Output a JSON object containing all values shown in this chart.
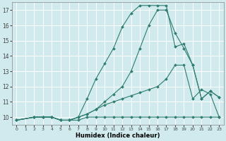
{
  "xlabel": "Humidex (Indice chaleur)",
  "bg_color": "#d0eaed",
  "grid_color": "#ffffff",
  "line_color": "#2e7d6e",
  "xlim": [
    -0.5,
    23.5
  ],
  "ylim": [
    9.5,
    17.5
  ],
  "yticks": [
    10,
    11,
    12,
    13,
    14,
    15,
    16,
    17
  ],
  "xticks": [
    0,
    1,
    2,
    3,
    4,
    5,
    6,
    7,
    8,
    9,
    10,
    11,
    12,
    13,
    14,
    15,
    16,
    17,
    18,
    19,
    20,
    21,
    22,
    23
  ],
  "line1_x": [
    0,
    2,
    3,
    4,
    5,
    6,
    7,
    8,
    9,
    10,
    11,
    12,
    13,
    14,
    15,
    16,
    17,
    18,
    19,
    20,
    21,
    22,
    23
  ],
  "line1_y": [
    9.8,
    10.0,
    10.0,
    10.0,
    9.8,
    9.8,
    9.8,
    10.0,
    10.0,
    10.0,
    10.0,
    10.0,
    10.0,
    10.0,
    10.0,
    10.0,
    10.0,
    10.0,
    10.0,
    10.0,
    10.0,
    10.0,
    10.0
  ],
  "line2_x": [
    0,
    2,
    3,
    4,
    5,
    6,
    7,
    8,
    9,
    10,
    11,
    12,
    13,
    14,
    15,
    16,
    17,
    18,
    19,
    20,
    21,
    22,
    23
  ],
  "line2_y": [
    9.8,
    10.0,
    10.0,
    10.0,
    9.8,
    9.8,
    10.0,
    10.2,
    10.5,
    11.0,
    11.5,
    12.0,
    13.0,
    14.5,
    16.0,
    17.0,
    17.0,
    15.5,
    14.5,
    13.4,
    11.2,
    11.7,
    11.3
  ],
  "line3_x": [
    0,
    2,
    3,
    4,
    5,
    6,
    7,
    8,
    9,
    10,
    11,
    12,
    13,
    14,
    15,
    16,
    17,
    18,
    19,
    20,
    21,
    22,
    23
  ],
  "line3_y": [
    9.8,
    10.0,
    10.0,
    10.0,
    9.8,
    9.8,
    10.0,
    11.2,
    12.5,
    13.5,
    14.5,
    15.9,
    16.8,
    17.3,
    17.3,
    17.3,
    17.3,
    14.6,
    14.8,
    13.4,
    11.2,
    11.7,
    11.3
  ],
  "line4_x": [
    0,
    2,
    3,
    4,
    5,
    6,
    7,
    8,
    9,
    10,
    11,
    12,
    13,
    14,
    15,
    16,
    17,
    18,
    19,
    20,
    21,
    22,
    23
  ],
  "line4_y": [
    9.8,
    10.0,
    10.0,
    10.0,
    9.8,
    9.8,
    10.0,
    10.2,
    10.5,
    10.8,
    11.0,
    11.2,
    11.4,
    11.6,
    11.8,
    12.0,
    12.5,
    13.4,
    13.4,
    11.2,
    11.8,
    11.5,
    10.0
  ],
  "marker": "D",
  "markersize": 2.0,
  "linewidth": 0.8
}
